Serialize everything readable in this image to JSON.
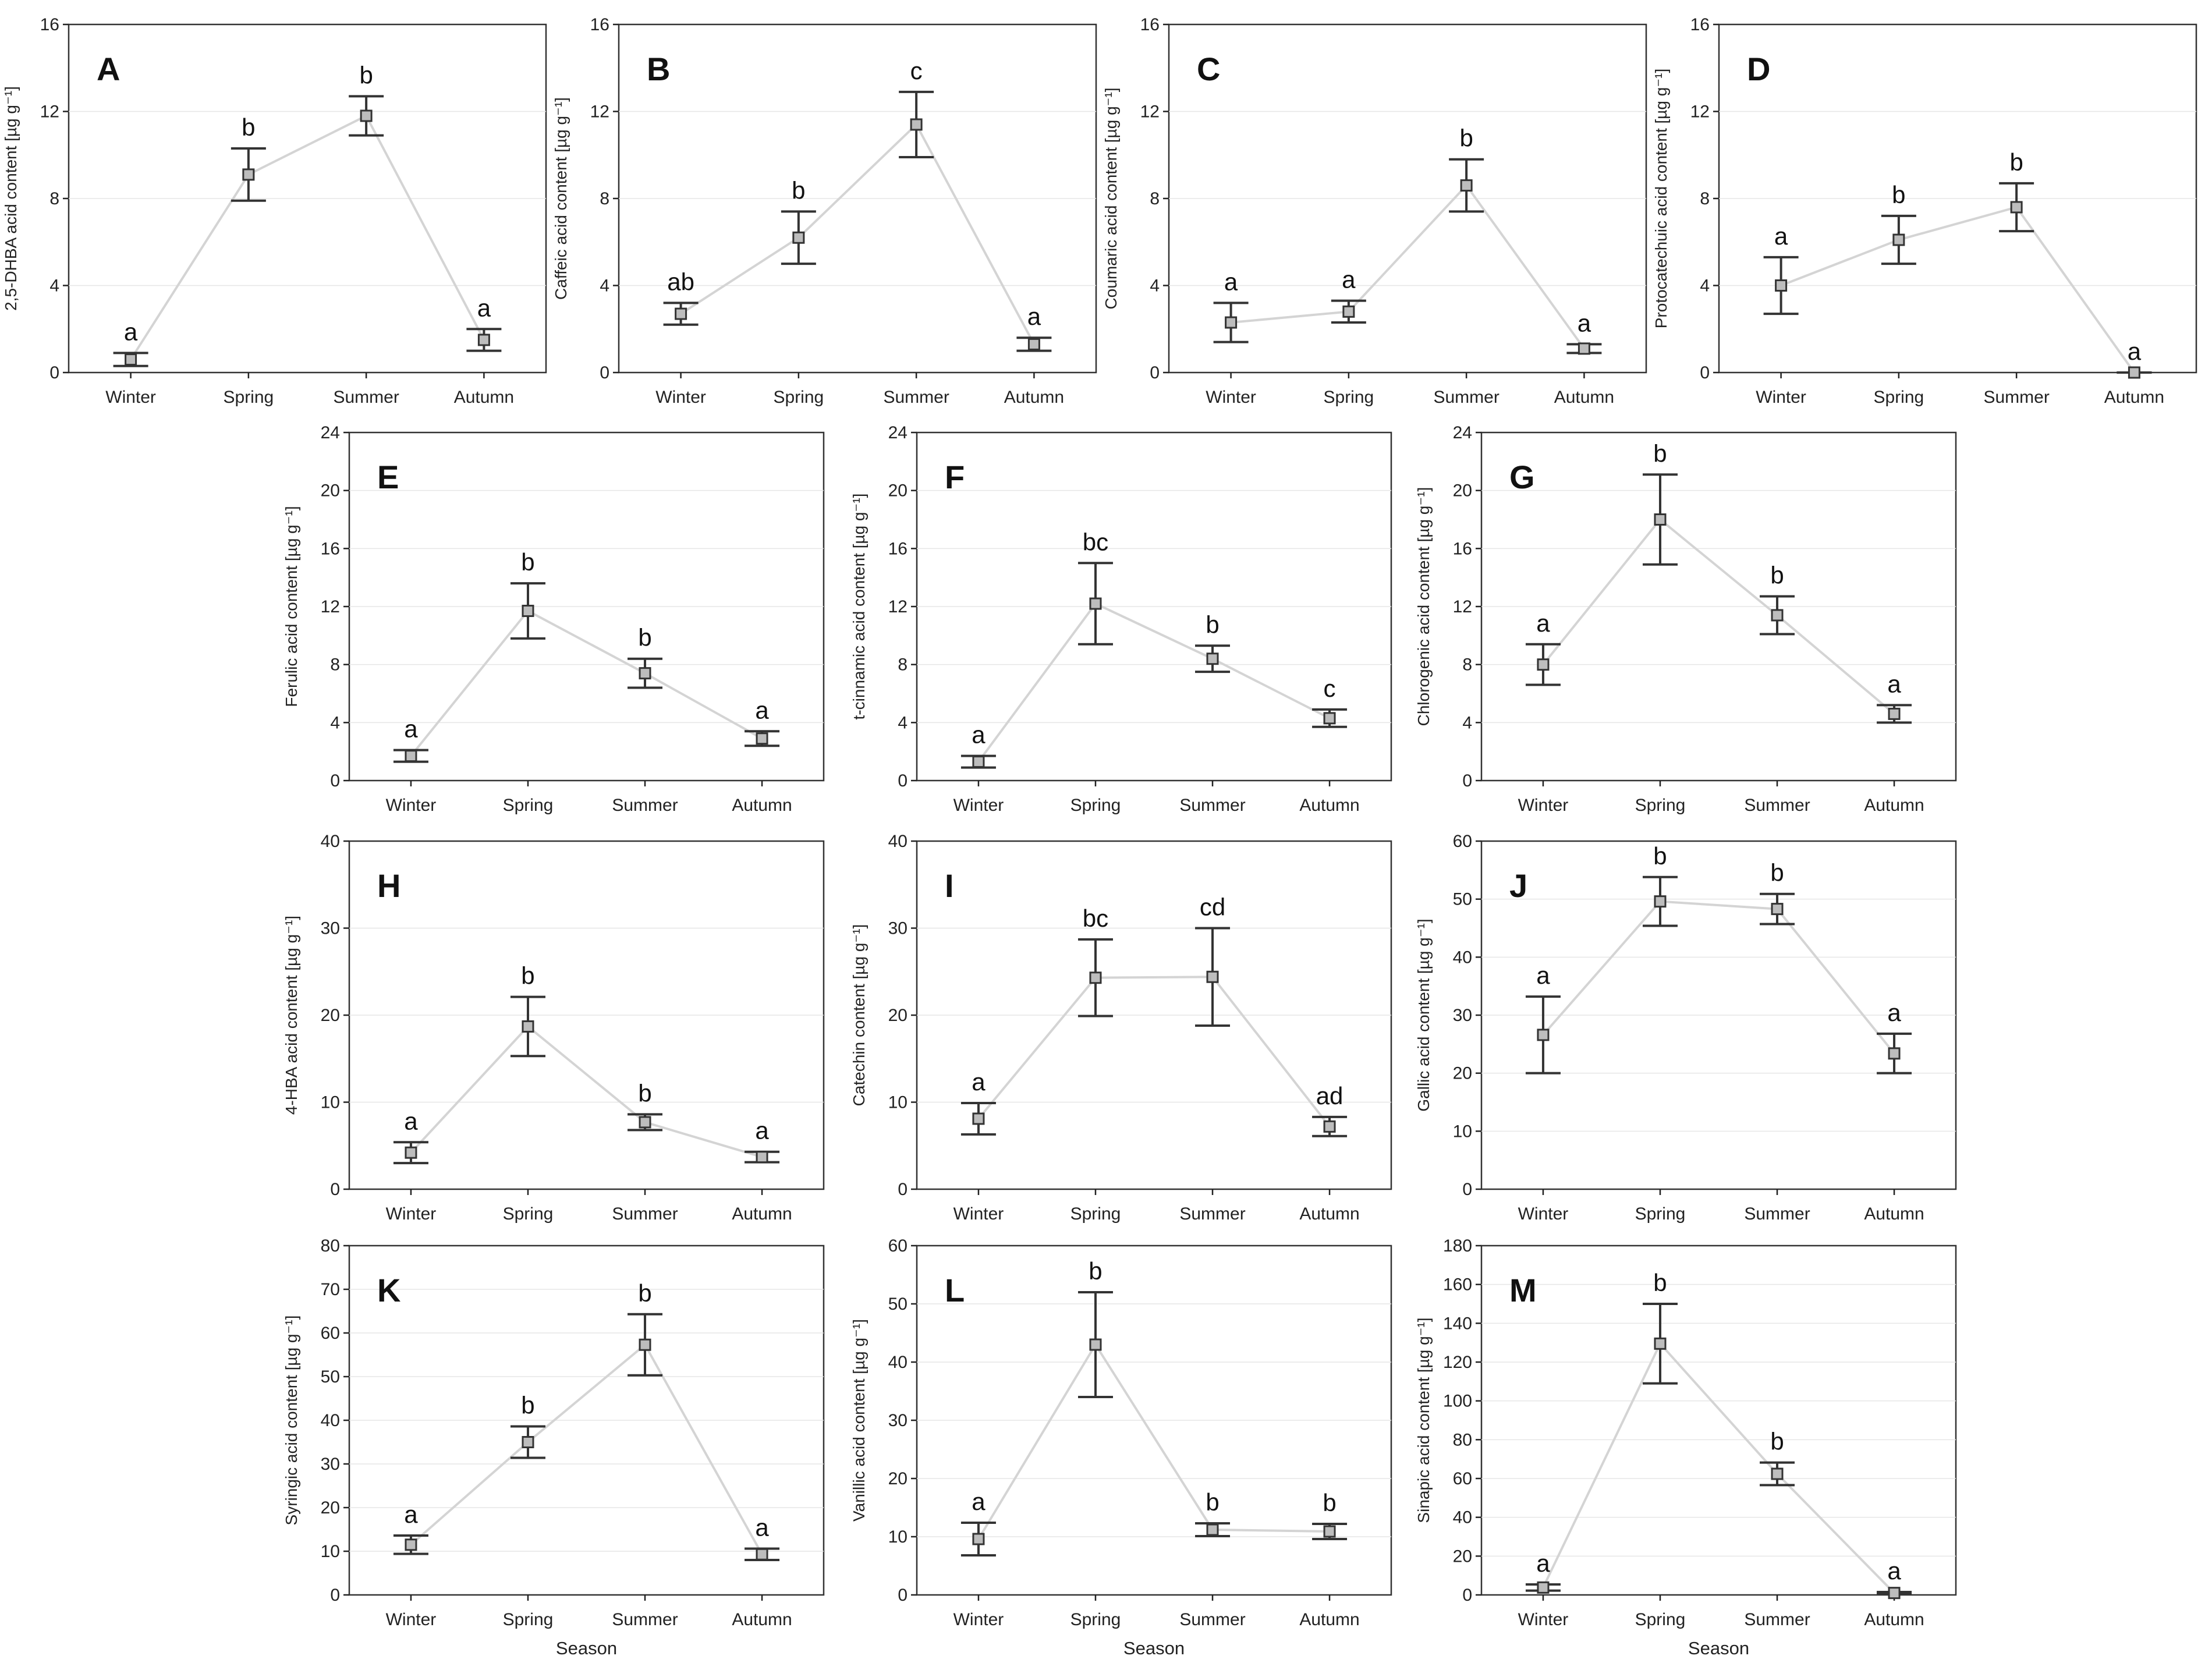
{
  "chart_data": [
    {
      "type": "line",
      "letter": "A",
      "ylabel": "2,5-DHBA acid content [µg g⁻¹]",
      "xlabel": "",
      "categories": [
        "Winter",
        "Spring",
        "Summer",
        "Autumn"
      ],
      "ylim": [
        0,
        16
      ],
      "yticks": [
        0,
        4,
        8,
        12,
        16
      ],
      "values": [
        0.6,
        9.1,
        11.8,
        1.5
      ],
      "errors": [
        0.3,
        1.2,
        0.9,
        0.5
      ],
      "significance": [
        "a",
        "b",
        "b",
        "a"
      ]
    },
    {
      "type": "line",
      "letter": "B",
      "ylabel": "Caffeic acid content [µg g⁻¹]",
      "xlabel": "",
      "categories": [
        "Winter",
        "Spring",
        "Summer",
        "Autumn"
      ],
      "ylim": [
        0,
        16
      ],
      "yticks": [
        0,
        4,
        8,
        12,
        16
      ],
      "values": [
        2.7,
        6.2,
        11.4,
        1.3
      ],
      "errors": [
        0.5,
        1.2,
        1.5,
        0.3
      ],
      "significance": [
        "ab",
        "b",
        "c",
        "a"
      ]
    },
    {
      "type": "line",
      "letter": "C",
      "ylabel": "Coumaric acid content [µg g⁻¹]",
      "xlabel": "",
      "categories": [
        "Winter",
        "Spring",
        "Summer",
        "Autumn"
      ],
      "ylim": [
        0,
        16
      ],
      "yticks": [
        0,
        4,
        8,
        12,
        16
      ],
      "values": [
        2.3,
        2.8,
        8.6,
        1.1
      ],
      "errors": [
        0.9,
        0.5,
        1.2,
        0.2
      ],
      "significance": [
        "a",
        "a",
        "b",
        "a"
      ]
    },
    {
      "type": "line",
      "letter": "D",
      "ylabel": "Protocatechuic acid content [µg g⁻¹]",
      "xlabel": "",
      "categories": [
        "Winter",
        "Spring",
        "Summer",
        "Autumn"
      ],
      "ylim": [
        0,
        16
      ],
      "yticks": [
        0,
        4,
        8,
        12,
        16
      ],
      "values": [
        4.0,
        6.1,
        7.6,
        0.0
      ],
      "errors": [
        1.3,
        1.1,
        1.1,
        0.0
      ],
      "significance": [
        "a",
        "b",
        "b",
        "a"
      ]
    },
    {
      "type": "line",
      "letter": "E",
      "ylabel": "Ferulic acid content [µg g⁻¹]",
      "xlabel": "",
      "categories": [
        "Winter",
        "Spring",
        "Summer",
        "Autumn"
      ],
      "ylim": [
        0,
        24
      ],
      "yticks": [
        0,
        4,
        8,
        12,
        16,
        20,
        24
      ],
      "values": [
        1.7,
        11.7,
        7.4,
        2.9
      ],
      "errors": [
        0.4,
        1.9,
        1.0,
        0.5
      ],
      "significance": [
        "a",
        "b",
        "b",
        "a"
      ]
    },
    {
      "type": "line",
      "letter": "F",
      "ylabel": "t-cinnamic acid content [µg g⁻¹]",
      "xlabel": "",
      "categories": [
        "Winter",
        "Spring",
        "Summer",
        "Autumn"
      ],
      "ylim": [
        0,
        24
      ],
      "yticks": [
        0,
        4,
        8,
        12,
        16,
        20,
        24
      ],
      "values": [
        1.3,
        12.2,
        8.4,
        4.3
      ],
      "errors": [
        0.4,
        2.8,
        0.9,
        0.6
      ],
      "significance": [
        "a",
        "bc",
        "b",
        "c"
      ]
    },
    {
      "type": "line",
      "letter": "G",
      "ylabel": "Chlorogenic acid content [µg g⁻¹]",
      "xlabel": "",
      "categories": [
        "Winter",
        "Spring",
        "Summer",
        "Autumn"
      ],
      "ylim": [
        0,
        24
      ],
      "yticks": [
        0,
        4,
        8,
        12,
        16,
        20,
        24
      ],
      "values": [
        8.0,
        18.0,
        11.4,
        4.6
      ],
      "errors": [
        1.4,
        3.1,
        1.3,
        0.6
      ],
      "significance": [
        "a",
        "b",
        "b",
        "a"
      ]
    },
    {
      "type": "line",
      "letter": "H",
      "ylabel": "4-HBA acid content [µg g⁻¹]",
      "xlabel": "",
      "categories": [
        "Winter",
        "Spring",
        "Summer",
        "Autumn"
      ],
      "ylim": [
        0,
        40
      ],
      "yticks": [
        0,
        10,
        20,
        30,
        40
      ],
      "values": [
        4.2,
        18.7,
        7.7,
        3.7
      ],
      "errors": [
        1.2,
        3.4,
        0.9,
        0.6
      ],
      "significance": [
        "a",
        "b",
        "b",
        "a"
      ]
    },
    {
      "type": "line",
      "letter": "I",
      "ylabel": "Catechin content [µg g⁻¹]",
      "xlabel": "",
      "categories": [
        "Winter",
        "Spring",
        "Summer",
        "Autumn"
      ],
      "ylim": [
        0,
        40
      ],
      "yticks": [
        0,
        10,
        20,
        30,
        40
      ],
      "values": [
        8.1,
        24.3,
        24.4,
        7.2
      ],
      "errors": [
        1.8,
        4.4,
        5.6,
        1.1
      ],
      "significance": [
        "a",
        "bc",
        "cd",
        "ad"
      ]
    },
    {
      "type": "line",
      "letter": "J",
      "ylabel": "Gallic acid content [µg g⁻¹]",
      "xlabel": "",
      "categories": [
        "Winter",
        "Spring",
        "Summer",
        "Autumn"
      ],
      "ylim": [
        0,
        60
      ],
      "yticks": [
        0,
        10,
        20,
        30,
        40,
        50,
        60
      ],
      "values": [
        26.6,
        49.6,
        48.3,
        23.4
      ],
      "errors": [
        6.6,
        4.2,
        2.6,
        3.4
      ],
      "significance": [
        "a",
        "b",
        "b",
        "a"
      ]
    },
    {
      "type": "line",
      "letter": "K",
      "ylabel": "Syringic acid content [µg g⁻¹]",
      "xlabel": "Season",
      "categories": [
        "Winter",
        "Spring",
        "Summer",
        "Autumn"
      ],
      "ylim": [
        0,
        80
      ],
      "yticks": [
        0,
        10,
        20,
        30,
        40,
        50,
        60,
        70,
        80
      ],
      "values": [
        11.5,
        35.0,
        57.3,
        9.3
      ],
      "errors": [
        2.1,
        3.6,
        7.0,
        1.3
      ],
      "significance": [
        "a",
        "b",
        "b",
        "a"
      ]
    },
    {
      "type": "line",
      "letter": "L",
      "ylabel": "Vanillic acid content [µg g⁻¹]",
      "xlabel": "Season",
      "categories": [
        "Winter",
        "Spring",
        "Summer",
        "Autumn"
      ],
      "ylim": [
        0,
        60
      ],
      "yticks": [
        0,
        10,
        20,
        30,
        40,
        50,
        60
      ],
      "values": [
        9.6,
        43.0,
        11.2,
        10.9
      ],
      "errors": [
        2.8,
        9.0,
        1.1,
        1.3
      ],
      "significance": [
        "a",
        "b",
        "b",
        "b"
      ]
    },
    {
      "type": "line",
      "letter": "M",
      "ylabel": "Sinapic acid content [µg g⁻¹]",
      "xlabel": "Season",
      "categories": [
        "Winter",
        "Spring",
        "Summer",
        "Autumn"
      ],
      "ylim": [
        0,
        180
      ],
      "yticks": [
        0,
        20,
        40,
        60,
        80,
        100,
        120,
        140,
        160,
        180
      ],
      "values": [
        3.8,
        129.5,
        62.4,
        1.0
      ],
      "errors": [
        1.6,
        20.5,
        5.8,
        0.5
      ],
      "significance": [
        "a",
        "b",
        "b",
        "a"
      ]
    }
  ]
}
